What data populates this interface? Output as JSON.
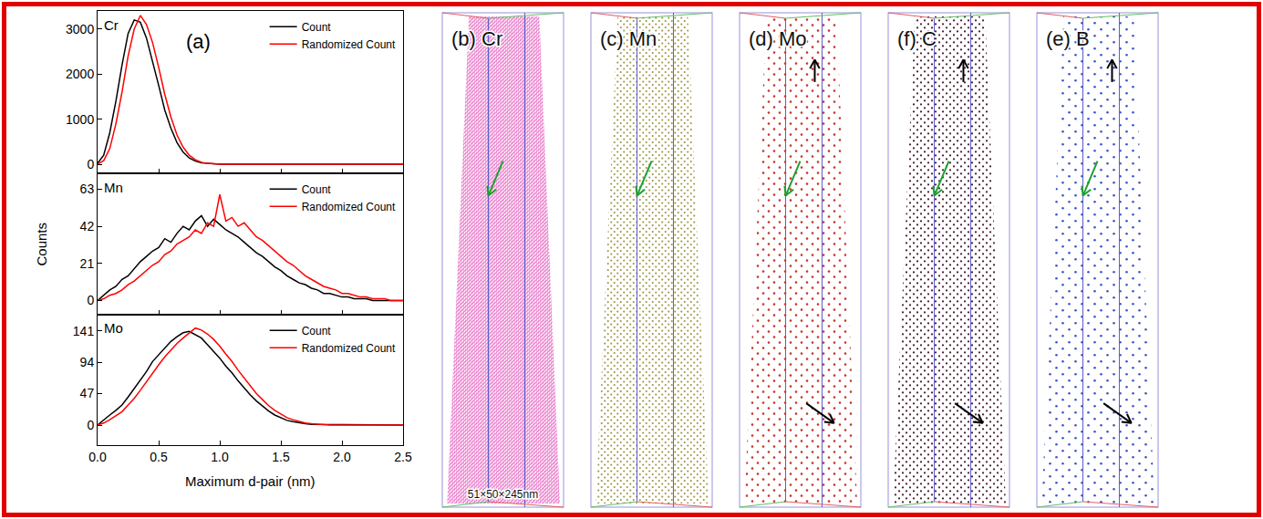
{
  "chart_data": [
    {
      "type": "line",
      "title": "Cr",
      "annotations": [
        "(a)"
      ],
      "x": [
        0,
        0.05,
        0.1,
        0.15,
        0.2,
        0.25,
        0.3,
        0.35,
        0.4,
        0.45,
        0.5,
        0.55,
        0.6,
        0.65,
        0.7,
        0.75,
        0.8,
        0.85,
        0.9,
        0.95,
        1,
        1.05,
        1.1,
        1.15,
        1.2,
        1.25,
        1.3,
        1.35,
        1.4,
        1.45,
        1.5,
        1.55,
        1.6,
        1.65,
        1.7,
        1.75,
        1.8,
        1.85,
        1.9,
        1.95,
        2,
        2.05,
        2.1,
        2.15,
        2.2,
        2.25,
        2.3,
        2.35,
        2.4,
        2.45,
        2.5
      ],
      "series": [
        {
          "name": "Count",
          "color": "#000000",
          "values": [
            20,
            200,
            700,
            1400,
            2200,
            2900,
            3200,
            3150,
            2800,
            2300,
            1750,
            1200,
            800,
            480,
            270,
            140,
            70,
            30,
            15,
            5,
            0,
            0,
            0,
            0,
            0,
            0,
            0,
            0,
            0,
            0,
            0,
            0,
            0,
            0,
            0,
            0,
            0,
            0,
            0,
            0,
            0,
            0,
            0,
            0,
            0,
            0,
            0,
            0,
            0,
            0,
            0
          ]
        },
        {
          "name": "Randomized Count",
          "color": "#ff0000",
          "values": [
            5,
            80,
            350,
            900,
            1600,
            2400,
            3000,
            3300,
            3100,
            2700,
            2150,
            1550,
            1050,
            650,
            380,
            200,
            100,
            45,
            20,
            8,
            2,
            0,
            0,
            0,
            0,
            0,
            0,
            0,
            0,
            0,
            0,
            0,
            0,
            0,
            0,
            0,
            0,
            0,
            0,
            0,
            0,
            0,
            0,
            0,
            0,
            0,
            0,
            0,
            0,
            0,
            0
          ]
        }
      ],
      "xlim": [
        0,
        2.5
      ],
      "xticks": [
        0,
        0.5,
        1,
        1.5,
        2,
        2.5
      ],
      "ylim": [
        -200,
        3400
      ],
      "yticks": [
        0,
        1000,
        2000,
        3000
      ],
      "legend": "upper right",
      "grid": false,
      "tick_labels": "y"
    },
    {
      "type": "line",
      "title": "Mn",
      "ylabel": "Counts",
      "x": [
        0,
        0.05,
        0.1,
        0.15,
        0.2,
        0.25,
        0.3,
        0.35,
        0.4,
        0.45,
        0.5,
        0.55,
        0.6,
        0.65,
        0.7,
        0.75,
        0.8,
        0.85,
        0.9,
        0.95,
        1,
        1.05,
        1.1,
        1.15,
        1.2,
        1.25,
        1.3,
        1.35,
        1.4,
        1.45,
        1.5,
        1.55,
        1.6,
        1.65,
        1.7,
        1.75,
        1.8,
        1.85,
        1.9,
        1.95,
        2,
        2.05,
        2.1,
        2.15,
        2.2,
        2.25,
        2.3,
        2.35,
        2.4,
        2.45,
        2.5
      ],
      "series": [
        {
          "name": "Count",
          "color": "#000000",
          "values": [
            0,
            3,
            6,
            8,
            12,
            14,
            18,
            22,
            25,
            28,
            30,
            35,
            33,
            38,
            42,
            40,
            45,
            48,
            42,
            46,
            43,
            40,
            38,
            36,
            33,
            30,
            27,
            25,
            22,
            19,
            17,
            14,
            12,
            10,
            9,
            7,
            6,
            4,
            4,
            3,
            2,
            2,
            1,
            1,
            1,
            0,
            0,
            0,
            0,
            0,
            0
          ]
        },
        {
          "name": "Randomized Count",
          "color": "#ff0000",
          "values": [
            0,
            1,
            3,
            4,
            6,
            9,
            11,
            14,
            17,
            20,
            22,
            26,
            28,
            32,
            34,
            36,
            40,
            38,
            44,
            42,
            60,
            45,
            47,
            42,
            44,
            40,
            36,
            34,
            31,
            28,
            25,
            22,
            20,
            17,
            14,
            12,
            10,
            8,
            7,
            6,
            4,
            4,
            3,
            2,
            2,
            1,
            1,
            1,
            0,
            0,
            0
          ]
        }
      ],
      "xlim": [
        0,
        2.5
      ],
      "xticks": [
        0,
        0.5,
        1,
        1.5,
        2,
        2.5
      ],
      "ylim": [
        -8,
        72
      ],
      "yticks": [
        0,
        21,
        42,
        63
      ],
      "legend": "upper right",
      "grid": false,
      "tick_labels": "y"
    },
    {
      "type": "line",
      "title": "Mo",
      "xlabel": "Maximum d-pair (nm)",
      "x": [
        0,
        0.05,
        0.1,
        0.15,
        0.2,
        0.25,
        0.3,
        0.35,
        0.4,
        0.45,
        0.5,
        0.55,
        0.6,
        0.65,
        0.7,
        0.75,
        0.8,
        0.85,
        0.9,
        0.95,
        1,
        1.05,
        1.1,
        1.15,
        1.2,
        1.25,
        1.3,
        1.35,
        1.4,
        1.45,
        1.5,
        1.55,
        1.6,
        1.65,
        1.7,
        1.75,
        1.8,
        1.85,
        1.9,
        1.95,
        2,
        2.05,
        2.1,
        2.15,
        2.2,
        2.25,
        2.3,
        2.35,
        2.4,
        2.45,
        2.5
      ],
      "series": [
        {
          "name": "Count",
          "color": "#000000",
          "values": [
            0,
            8,
            15,
            22,
            30,
            42,
            55,
            68,
            80,
            95,
            105,
            115,
            125,
            132,
            138,
            140,
            135,
            130,
            120,
            110,
            100,
            88,
            78,
            66,
            55,
            45,
            36,
            28,
            21,
            15,
            11,
            7,
            5,
            3,
            2,
            1,
            1,
            0,
            0,
            0,
            0,
            0,
            0,
            0,
            0,
            0,
            0,
            0,
            0,
            0,
            0
          ]
        },
        {
          "name": "Randomized Count",
          "color": "#ff0000",
          "values": [
            0,
            3,
            8,
            14,
            20,
            30,
            40,
            52,
            65,
            78,
            90,
            102,
            112,
            122,
            130,
            138,
            145,
            142,
            136,
            128,
            118,
            106,
            95,
            82,
            70,
            58,
            47,
            38,
            29,
            22,
            16,
            11,
            8,
            5,
            3,
            2,
            1,
            1,
            0,
            0,
            0,
            0,
            0,
            0,
            0,
            0,
            0,
            0,
            0,
            0,
            0
          ]
        }
      ],
      "xlim": [
        0,
        2.5
      ],
      "xticks": [
        {
          "value": 0,
          "label": "0.0"
        },
        0.5,
        {
          "value": 1,
          "label": "1.0"
        },
        1.5,
        {
          "value": 2,
          "label": "2.0"
        },
        2.5
      ],
      "ylim": [
        -30,
        165
      ],
      "yticks": [
        0,
        47,
        94,
        141
      ],
      "legend": "upper right",
      "grid": false
    }
  ],
  "panels": [
    {
      "label": "(b) Cr",
      "color": "#e879c9",
      "annotation": "51×50×245nm"
    },
    {
      "label": "(c) Mn",
      "color": "#a39a4c"
    },
    {
      "label": "(d) Mo",
      "color": "#c8392e"
    },
    {
      "label": "(f) C",
      "color": "#4a2030"
    },
    {
      "label": "(e) B",
      "color": "#3d55c8"
    }
  ]
}
